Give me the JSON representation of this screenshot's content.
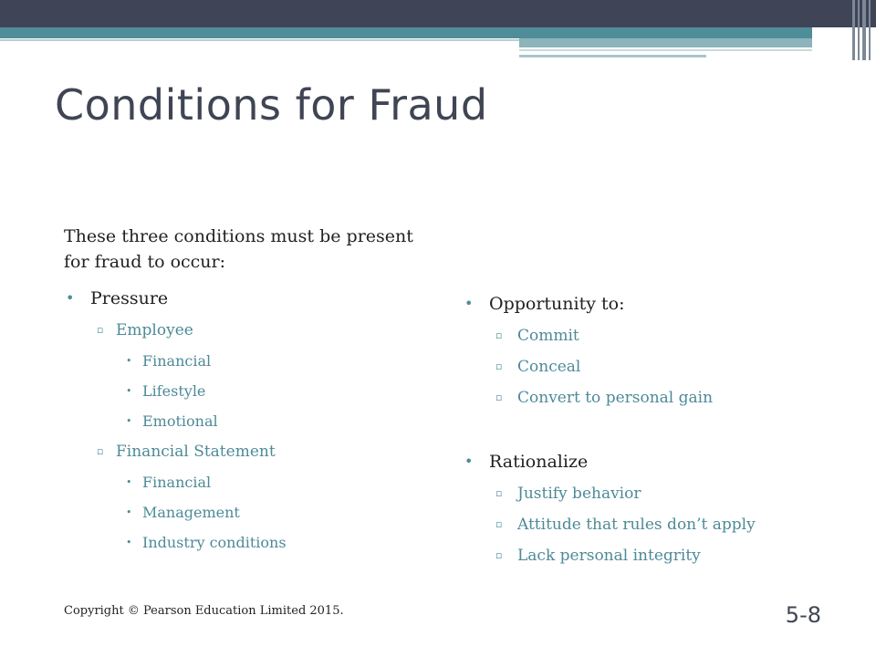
{
  "slide": {
    "title": "Conditions for Fraud",
    "intro": "These three conditions must be present for fraud to occur:",
    "left_column": {
      "pressure_label": "Pressure",
      "employee_label": "Employee",
      "employee_items": [
        "Financial",
        "Lifestyle",
        "Emotional"
      ],
      "financial_statement_label": "Financial Statement",
      "financial_statement_items": [
        "Financial",
        "Management",
        "Industry conditions"
      ]
    },
    "right_column": {
      "opportunity_label": "Opportunity to:",
      "opportunity_items": [
        "Commit",
        "Conceal",
        "Convert to personal gain"
      ],
      "rationalize_label": "Rationalize",
      "rationalize_items": [
        "Justify behavior",
        "Attitude that rules don’t apply",
        "Lack personal integrity"
      ]
    },
    "footer": "Copyright © Pearson Education Limited 2015.",
    "page_number": "5-8"
  },
  "colors": {
    "top_bar": "#3f4457",
    "accent": "#4f8d99",
    "sub_text": "#4d8a98"
  },
  "bullets": {
    "level1": "•",
    "level2": "▫",
    "level3": "•"
  }
}
